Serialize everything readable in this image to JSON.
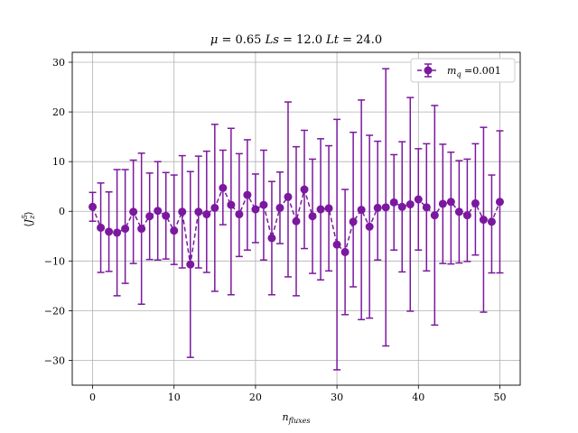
{
  "chart_data": {
    "type": "scatter",
    "title": "μ = 0.65 Ls = 12.0 Lt = 24.0",
    "xlabel": "n_fluxes",
    "ylabel": "⟨J_z^5⟩",
    "xlim": [
      -2.5,
      52.5
    ],
    "ylim": [
      -35,
      32
    ],
    "xticks": [
      0,
      10,
      20,
      30,
      40,
      50
    ],
    "yticks": [
      -30,
      -20,
      -10,
      0,
      10,
      20,
      30
    ],
    "grid": true,
    "legend_position": "top-right",
    "series": [
      {
        "name": "m_q =0.001",
        "color": "#7b189f",
        "marker": "circle",
        "linestyle": "dashed",
        "x": [
          0,
          1,
          2,
          3,
          4,
          5,
          6,
          7,
          8,
          9,
          10,
          11,
          12,
          13,
          14,
          15,
          16,
          17,
          18,
          19,
          20,
          21,
          22,
          23,
          24,
          25,
          26,
          27,
          28,
          29,
          30,
          31,
          32,
          33,
          34,
          35,
          36,
          37,
          38,
          39,
          40,
          41,
          42,
          43,
          44,
          45,
          46,
          47,
          48,
          49,
          50
        ],
        "y": [
          0.9,
          -3.3,
          -4.1,
          -4.3,
          -3.5,
          -0.1,
          -3.5,
          -1.0,
          0.1,
          -0.9,
          -3.9,
          -0.1,
          -10.7,
          -0.1,
          -0.6,
          0.7,
          4.7,
          1.3,
          -0.6,
          3.3,
          0.4,
          1.3,
          -5.4,
          0.7,
          2.9,
          -2.0,
          4.4,
          -1.0,
          0.4,
          0.6,
          -6.7,
          -8.2,
          -2.1,
          0.3,
          -3.1,
          0.7,
          0.8,
          1.8,
          0.9,
          1.4,
          2.4,
          0.8,
          -0.8,
          1.5,
          1.9,
          -0.1,
          -0.8,
          1.6,
          -1.7,
          -2.1,
          1.9
        ],
        "yerr_low": [
          2.9,
          9.0,
          8.0,
          12.7,
          11.0,
          10.4,
          15.2,
          8.7,
          9.9,
          8.7,
          6.8,
          11.3,
          18.7,
          11.3,
          11.7,
          16.8,
          7.4,
          18.1,
          8.5,
          11.1,
          6.7,
          11.1,
          11.4,
          7.2,
          16.1,
          15.0,
          11.9,
          11.5,
          14.2,
          12.6,
          25.2,
          12.6,
          13.1,
          22.1,
          18.4,
          10.5,
          27.9,
          9.6,
          13.1,
          21.5,
          10.2,
          12.8,
          22.1,
          12.0,
          12.5,
          10.3,
          9.3,
          10.4,
          18.6,
          10.3,
          14.3
        ],
        "yerr_high": [
          2.9,
          9.0,
          8.0,
          12.7,
          11.9,
          10.4,
          15.2,
          8.7,
          9.9,
          8.7,
          11.2,
          11.3,
          18.7,
          11.2,
          12.7,
          16.8,
          7.6,
          15.4,
          12.2,
          11.1,
          7.1,
          11.0,
          11.4,
          7.2,
          19.1,
          15.0,
          11.9,
          11.5,
          14.2,
          12.6,
          25.2,
          12.6,
          18.0,
          22.1,
          18.4,
          13.4,
          27.9,
          9.6,
          13.1,
          21.5,
          10.2,
          12.8,
          22.1,
          12.0,
          10.0,
          10.3,
          11.3,
          12.0,
          18.6,
          9.4,
          14.3
        ]
      }
    ]
  }
}
